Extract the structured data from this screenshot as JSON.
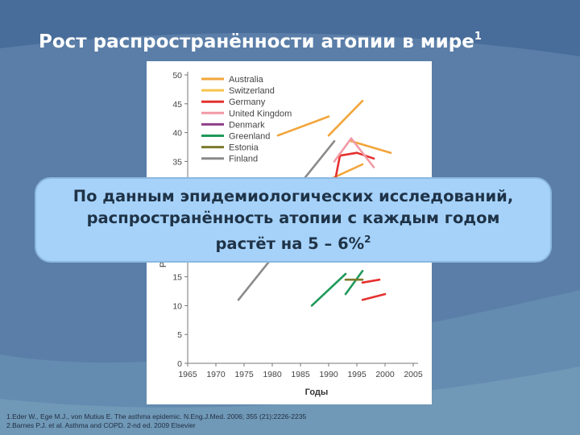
{
  "slide": {
    "title": "Рост распространённости атопии в мире",
    "title_sup": "1",
    "callout": {
      "lines": [
        "По данным эпидемиологических исследований,",
        "распространённость атопии с каждым годом",
        "растёт на 5 – 6%"
      ],
      "sup": "2"
    },
    "references": [
      "1.Eder W., Ege M.J., von Mutius E. The asthma epidemic. N.Eng.J.Med. 2006; 355 (21):2226-2235",
      "2.Barnes P.J. et al. Asthma and COPD. 2-nd ed. 2009 Elsevier"
    ]
  },
  "colors": {
    "background": "#5b7fa8",
    "callout": "#a6d2fa",
    "panel": "#ffffff"
  },
  "chart_data": {
    "type": "line",
    "title": "",
    "xlabel": "Годы",
    "ylabel": "Распро…ии (%)",
    "xlim": [
      1965,
      2005
    ],
    "ylim": [
      0,
      50
    ],
    "xticks": [
      1965,
      1970,
      1975,
      1980,
      1985,
      1990,
      1995,
      2000,
      2005
    ],
    "yticks": [
      0,
      5,
      10,
      15,
      20,
      25,
      30,
      35,
      40,
      45,
      50
    ],
    "legend_position": "top-right",
    "series": [
      {
        "name": "Australia",
        "color": "#f2a53a",
        "segments": [
          [
            [
              1981,
              39.5
            ],
            [
              1990,
              42.8
            ]
          ],
          [
            [
              1990,
              39.5
            ],
            [
              1996,
              45.5
            ]
          ],
          [
            [
              1994,
              38.5
            ],
            [
              2001,
              36.5
            ]
          ],
          [
            [
              1986,
              30
            ],
            [
              1996,
              34.5
            ]
          ]
        ]
      },
      {
        "name": "Switzerland",
        "color": "#f7c54e",
        "segments": []
      },
      {
        "name": "Germany",
        "color": "#e4312f",
        "segments": [
          [
            [
              1991,
              31
            ],
            [
              1992,
              36
            ]
          ],
          [
            [
              1992,
              36
            ],
            [
              1995,
              36.5
            ]
          ],
          [
            [
              1995,
              36.5
            ],
            [
              1998,
              35.5
            ]
          ],
          [
            [
              1996,
              14
            ],
            [
              1999,
              14.5
            ]
          ],
          [
            [
              1996,
              11
            ],
            [
              2000,
              12
            ]
          ]
        ]
      },
      {
        "name": "United Kingdom",
        "color": "#f29aa6",
        "segments": [
          [
            [
              1991,
              35
            ],
            [
              1994,
              39
            ]
          ],
          [
            [
              1994,
              39
            ],
            [
              1998,
              34
            ]
          ]
        ]
      },
      {
        "name": "Denmark",
        "color": "#8e3f8a",
        "segments": []
      },
      {
        "name": "Greenland",
        "color": "#1f9a5a",
        "segments": [
          [
            [
              1987,
              10
            ],
            [
              1993,
              15.5
            ]
          ],
          [
            [
              1993,
              12
            ],
            [
              1996,
              16
            ]
          ]
        ]
      },
      {
        "name": "Estonia",
        "color": "#7c7a2c",
        "segments": [
          [
            [
              1993,
              14.5
            ],
            [
              1996,
              14.5
            ]
          ]
        ]
      },
      {
        "name": "Finland",
        "color": "#8a8a8a",
        "segments": [
          [
            [
              1974,
              11
            ],
            [
              1983,
              22
            ]
          ],
          [
            [
              1984,
              30
            ],
            [
              1991,
              38.5
            ]
          ]
        ]
      }
    ]
  }
}
